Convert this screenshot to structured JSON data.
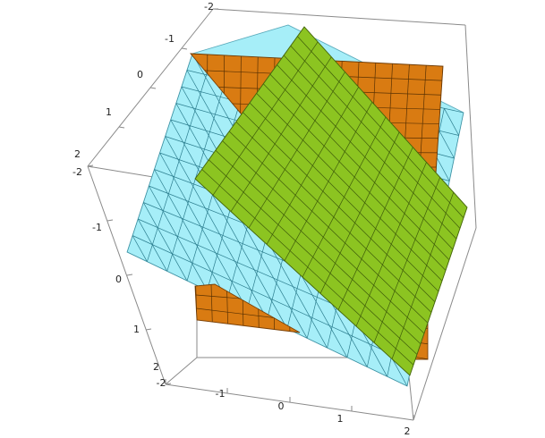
{
  "plot": {
    "type": "3d-surface-plot",
    "surfaces": [
      {
        "name": "cyan-plane",
        "color": "#a6eef8",
        "mesh_color": "#2b7d8e",
        "edge_color": "#5aaabb"
      },
      {
        "name": "orange-plane",
        "color": "#d97b12",
        "mesh_color": "#5a3203",
        "edge_color": "#7a4006"
      },
      {
        "name": "green-plane",
        "color": "#8cc421",
        "mesh_color": "#3e5c0a",
        "edge_color": "#4c6e0e"
      }
    ],
    "axes": {
      "top_axis_ticks": [
        "-2",
        "-1",
        "0",
        "1",
        "2"
      ],
      "left_axis_ticks": [
        "-2",
        "-1",
        "0",
        "1",
        "2"
      ],
      "bottom_axis_ticks": [
        "-2",
        "-1",
        "0",
        "1",
        "2"
      ]
    }
  }
}
